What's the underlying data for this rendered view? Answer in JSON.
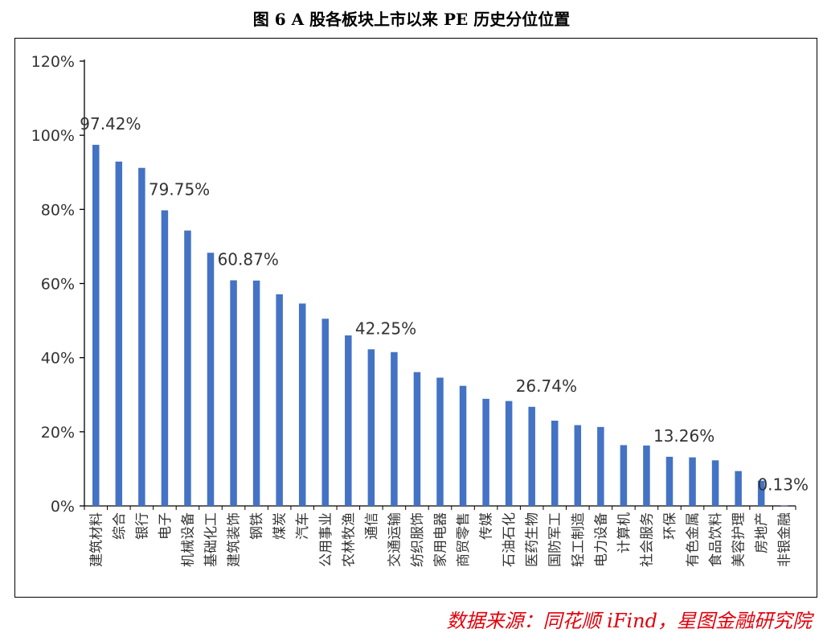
{
  "title": "图 6 A 股各板块上市以来 PE 历史分位位置",
  "source": "数据来源：同花顺 iFind，星图金融研究院",
  "colors": {
    "bar": "#4472c4",
    "axis": "#000000",
    "text": "#333333"
  },
  "chart_data": {
    "type": "bar",
    "title": "图 6 A 股各板块上市以来 PE 历史分位位置",
    "xlabel": "",
    "ylabel": "",
    "ylim": [
      0,
      120
    ],
    "yticks": [
      "0%",
      "20%",
      "40%",
      "60%",
      "80%",
      "100%",
      "120%"
    ],
    "grid": false,
    "categories": [
      "建筑材料",
      "综合",
      "银行",
      "电子",
      "机械设备",
      "基础化工",
      "建筑装饰",
      "钢铁",
      "煤炭",
      "汽车",
      "公用事业",
      "农林牧渔",
      "通信",
      "交通运输",
      "纺织服饰",
      "家用电器",
      "商贸零售",
      "传媒",
      "石油石化",
      "医药生物",
      "国防军工",
      "轻工制造",
      "电力设备",
      "计算机",
      "社会服务",
      "环保",
      "有色金属",
      "食品饮料",
      "美容护理",
      "房地产",
      "非银金融"
    ],
    "values": [
      97.42,
      92.9,
      91.2,
      79.75,
      74.3,
      68.3,
      60.87,
      60.8,
      57.1,
      54.6,
      50.5,
      46.0,
      42.25,
      41.5,
      36.1,
      34.6,
      32.4,
      28.9,
      28.3,
      26.74,
      23.0,
      21.8,
      21.3,
      16.4,
      16.3,
      13.26,
      13.1,
      12.3,
      9.4,
      6.8,
      0.13
    ],
    "annotations": [
      {
        "category": "建筑材料",
        "label": "97.42%"
      },
      {
        "category": "电子",
        "label": "79.75%"
      },
      {
        "category": "建筑装饰",
        "label": "60.87%"
      },
      {
        "category": "通信",
        "label": "42.25%"
      },
      {
        "category": "医药生物",
        "label": "26.74%"
      },
      {
        "category": "环保",
        "label": "13.26%"
      },
      {
        "category": "非银金融",
        "label": "0.13%"
      }
    ]
  }
}
